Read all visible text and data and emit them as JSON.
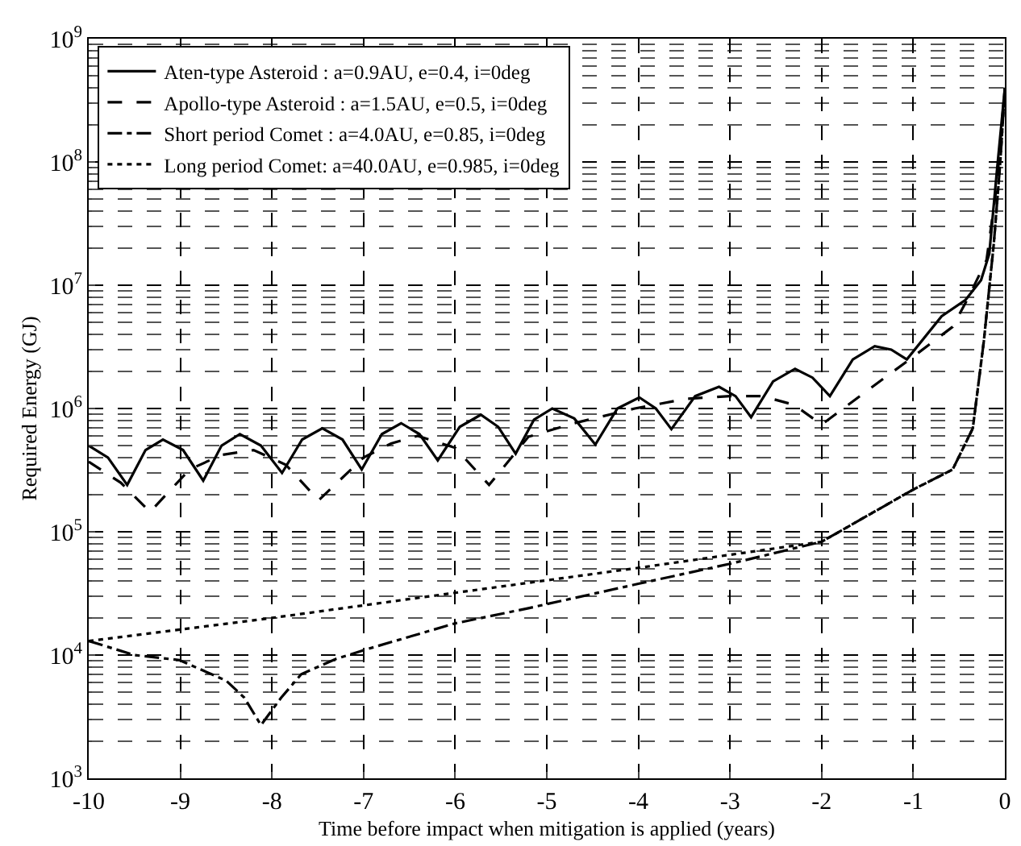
{
  "chart_data": {
    "type": "line",
    "xlabel": "Time before impact when mitigation is applied (years)",
    "ylabel": "Required Energy (GJ)",
    "log": "y",
    "grid": true,
    "legend": "top left",
    "marker": "none",
    "xlim": [
      -10,
      0
    ],
    "xticks": [
      -10,
      -9,
      -8,
      -7,
      -6,
      -5,
      -4,
      -3,
      -2,
      -1,
      0
    ],
    "ylim": [
      1000,
      1000000000
    ],
    "yticks": [
      {
        "value": 1000,
        "label": "10$^{3}$"
      },
      {
        "value": 10000,
        "label": "10$^{4}$"
      },
      {
        "value": 100000,
        "label": "10$^{5}$"
      },
      {
        "value": 1000000,
        "label": "10$^{6}$"
      },
      {
        "value": 10000000,
        "label": "10$^{7}$"
      },
      {
        "value": 100000000,
        "label": "10$^{8}$"
      },
      {
        "value": 1000000000,
        "label": "10$^{9}$"
      }
    ],
    "series": [
      {
        "name": "Aten-type Asteroid : a=0.9AU, e=0.4, i=0deg",
        "color": "#000000",
        "line_style": "solid",
        "x": [
          -10,
          -9.79,
          -9.58,
          -9.38,
          -9.19,
          -8.97,
          -8.75,
          -8.55,
          -8.35,
          -8.12,
          -7.89,
          -7.67,
          -7.45,
          -7.23,
          -7.02,
          -6.8,
          -6.59,
          -6.39,
          -6.19,
          -5.95,
          -5.72,
          -5.53,
          -5.34,
          -5.14,
          -4.94,
          -4.7,
          -4.47,
          -4.23,
          -3.99,
          -3.81,
          -3.64,
          -3.38,
          -3.12,
          -2.94,
          -2.77,
          -2.53,
          -2.29,
          -2.1,
          -1.91,
          -1.66,
          -1.42,
          -1.24,
          -1.07,
          -0.69,
          -0.43,
          -0.26,
          -0.17,
          -0.09,
          0
        ],
        "values": [
          500000,
          400000,
          240000,
          460000,
          560000,
          460000,
          260000,
          500000,
          620000,
          500000,
          300000,
          560000,
          690000,
          560000,
          320000,
          620000,
          760000,
          620000,
          380000,
          710000,
          890000,
          710000,
          430000,
          810000,
          1000000,
          830000,
          510000,
          1000000,
          1230000,
          1000000,
          680000,
          1260000,
          1500000,
          1260000,
          850000,
          1660000,
          2100000,
          1780000,
          1260000,
          2500000,
          3200000,
          3000000,
          2500000,
          5600000,
          7600000,
          11000000,
          18000000,
          80000000,
          400000000
        ]
      },
      {
        "name": "Apollo-type Asteroid : a=1.5AU, e=0.5, i=0deg",
        "color": "#000000",
        "line_style": "dashed",
        "x": [
          -10,
          -9.65,
          -9.33,
          -8.9,
          -8.55,
          -8.2,
          -7.85,
          -7.49,
          -7.0,
          -6.7,
          -6.41,
          -6.0,
          -5.63,
          -5.2,
          -4.7,
          -4.04,
          -3.47,
          -3.0,
          -2.65,
          -2.3,
          -2.0,
          -1.5,
          -1.04,
          -0.57,
          -0.4,
          -0.2,
          -0.09,
          0
        ],
        "values": [
          370000,
          250000,
          145000,
          320000,
          420000,
          460000,
          350000,
          180000,
          400000,
          520000,
          600000,
          480000,
          240000,
          590000,
          760000,
          1000000,
          1200000,
          1260000,
          1260000,
          1070000,
          740000,
          1400000,
          2500000,
          4600000,
          7900000,
          16000000,
          63000000,
          400000000
        ]
      },
      {
        "name": "Short period Comet : a=4.0AU, e=0.85, i=0deg",
        "color": "#000000",
        "line_style": "dashdot",
        "x": [
          -10,
          -9.5,
          -9.01,
          -8.5,
          -8.3,
          -8.12,
          -7.9,
          -7.68,
          -7.3,
          -6.99,
          -6.01,
          -5.2,
          -3.99,
          -3.0,
          -2.0,
          -1.0,
          -0.57,
          -0.35,
          -0.23,
          -0.12,
          -0.05,
          0
        ],
        "values": [
          13000,
          10000,
          9100,
          6200,
          4500,
          2700,
          4500,
          7000,
          9300,
          11000,
          18000,
          24000,
          38000,
          55000,
          83000,
          220000,
          320000,
          690000,
          3500000,
          22000000,
          100000000,
          400000000
        ]
      },
      {
        "name": "Long period Comet: a=40.0AU, e=0.985, i=0deg",
        "color": "#000000",
        "line_style": "dotted",
        "x": [
          -10,
          -8,
          -6,
          -4,
          -2,
          -1,
          -0.57,
          -0.35,
          -0.23,
          -0.12,
          -0.05,
          0
        ],
        "values": [
          13000,
          20000,
          32000,
          51000,
          83000,
          220000,
          320000,
          690000,
          3500000,
          22000000,
          100000000,
          400000000
        ]
      }
    ]
  }
}
